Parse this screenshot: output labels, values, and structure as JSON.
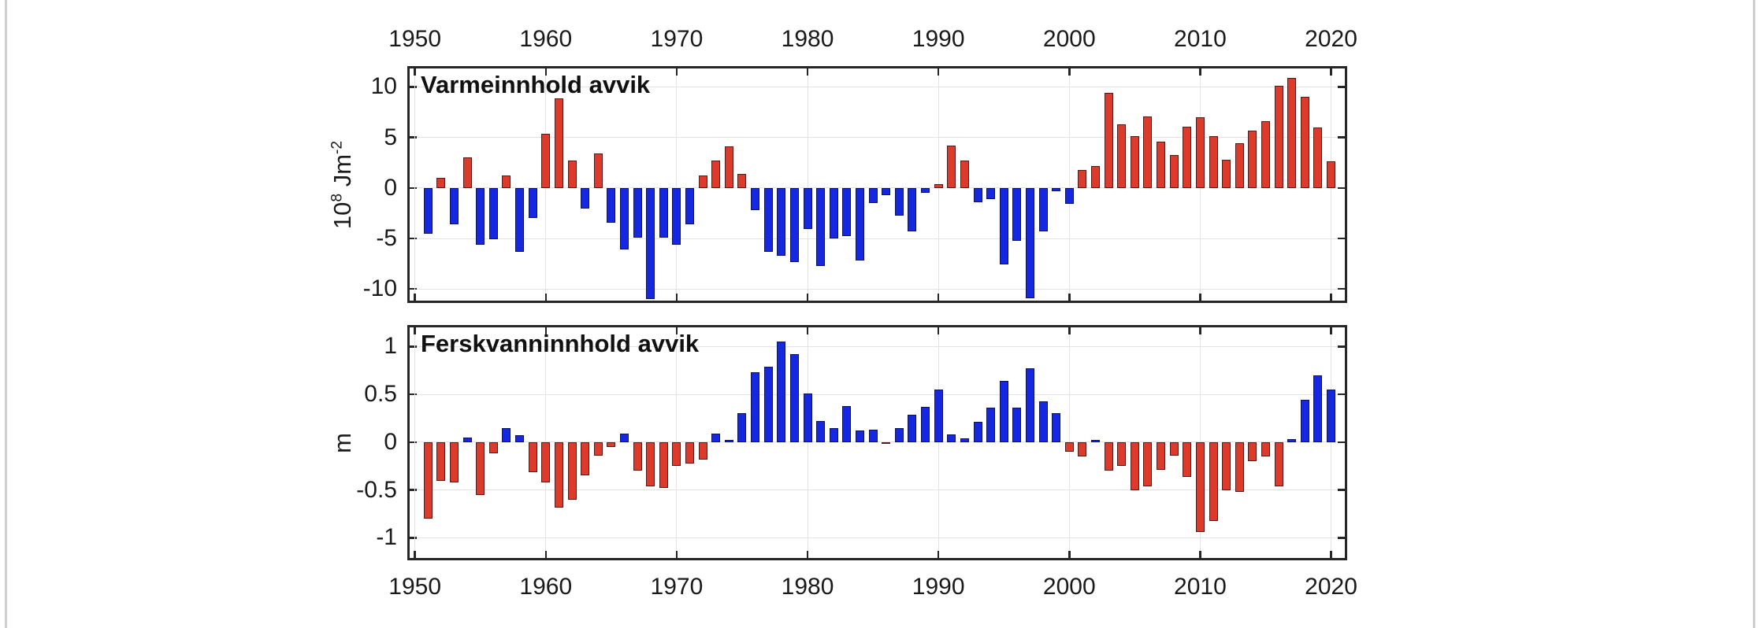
{
  "page": {
    "background": "#ffffff",
    "edge_strip_color": "#cfcfcf"
  },
  "chart_data": [
    {
      "type": "bar",
      "title": "Varmeinnhold avvik",
      "ylabel_parts": {
        "base": "10",
        "sup": "8",
        "mid": " Jm",
        "sup2": "-2"
      },
      "ylabel_text": "10^8 Jm^-2",
      "xlabel_side": "top",
      "positive_color": "#dc3b2b",
      "negative_color": "#1527e0",
      "grid": true,
      "xticks": [
        1950,
        1960,
        1970,
        1980,
        1990,
        2000,
        2010,
        2020
      ],
      "xtick_labels": [
        "1950",
        "1960",
        "1970",
        "1980",
        "1990",
        "2000",
        "2010",
        "2020"
      ],
      "yticks": [
        10,
        5,
        0,
        -5,
        -10
      ],
      "ytick_labels": [
        "10",
        "5",
        "0",
        "-5",
        "-10"
      ],
      "xlim": [
        1949.6,
        2021.05
      ],
      "ylim": [
        -11.15,
        11.83
      ],
      "years": [
        1951,
        1952,
        1953,
        1954,
        1955,
        1956,
        1957,
        1958,
        1959,
        1960,
        1961,
        1962,
        1963,
        1964,
        1965,
        1966,
        1967,
        1968,
        1969,
        1970,
        1971,
        1972,
        1973,
        1974,
        1975,
        1976,
        1977,
        1978,
        1979,
        1980,
        1981,
        1982,
        1983,
        1984,
        1985,
        1986,
        1987,
        1988,
        1989,
        1990,
        1991,
        1992,
        1993,
        1994,
        1995,
        1996,
        1997,
        1998,
        1999,
        2000,
        2001,
        2002,
        2003,
        2004,
        2005,
        2006,
        2007,
        2008,
        2009,
        2010,
        2011,
        2012,
        2013,
        2014,
        2015,
        2016,
        2017,
        2018,
        2019,
        2020
      ],
      "values": [
        -4.5,
        1.0,
        -3.6,
        3.0,
        -5.6,
        -5.1,
        1.2,
        -6.3,
        -3.0,
        5.4,
        8.9,
        2.7,
        -2.0,
        3.4,
        -3.4,
        -6.1,
        -4.9,
        -11.0,
        -4.9,
        -5.6,
        -3.6,
        1.2,
        2.7,
        4.1,
        1.4,
        -2.2,
        -6.3,
        -6.7,
        -7.3,
        -4.1,
        -7.7,
        -5.0,
        -4.8,
        -7.2,
        -1.5,
        -0.7,
        -2.7,
        -4.3,
        -0.5,
        0.4,
        4.2,
        2.7,
        -1.4,
        -1.1,
        -7.6,
        -5.2,
        -10.9,
        -4.3,
        -0.3,
        -1.6,
        1.8,
        2.2,
        9.4,
        6.3,
        5.1,
        7.1,
        4.6,
        3.3,
        6.1,
        7.0,
        5.1,
        2.8,
        4.4,
        5.7,
        6.6,
        10.1,
        10.9,
        9.0,
        6.0,
        2.6
      ]
    },
    {
      "type": "bar",
      "title": "Ferskvanninnhold avvik",
      "ylabel": "m",
      "xlabel_side": "bottom",
      "positive_color": "#1527e0",
      "negative_color": "#dc3b2b",
      "grid": true,
      "xticks": [
        1950,
        1960,
        1970,
        1980,
        1990,
        2000,
        2010,
        2020
      ],
      "xtick_labels": [
        "1950",
        "1960",
        "1970",
        "1980",
        "1990",
        "2000",
        "2010",
        "2020"
      ],
      "yticks": [
        1,
        0.5,
        0,
        -0.5,
        -1
      ],
      "ytick_labels": [
        "1",
        "0.5",
        "0",
        "-0.5",
        "-1"
      ],
      "xlim": [
        1949.6,
        2021.05
      ],
      "ylim": [
        -1.21,
        1.2
      ],
      "years": [
        1951,
        1952,
        1953,
        1954,
        1955,
        1956,
        1957,
        1958,
        1959,
        1960,
        1961,
        1962,
        1963,
        1964,
        1965,
        1966,
        1967,
        1968,
        1969,
        1970,
        1971,
        1972,
        1973,
        1974,
        1975,
        1976,
        1977,
        1978,
        1979,
        1980,
        1981,
        1982,
        1983,
        1984,
        1985,
        1986,
        1987,
        1988,
        1989,
        1990,
        1991,
        1992,
        1993,
        1994,
        1995,
        1996,
        1997,
        1998,
        1999,
        2000,
        2001,
        2002,
        2003,
        2004,
        2005,
        2006,
        2007,
        2008,
        2009,
        2010,
        2011,
        2012,
        2013,
        2014,
        2015,
        2016,
        2017,
        2018,
        2019,
        2020
      ],
      "values": [
        -0.8,
        -0.4,
        -0.42,
        0.05,
        -0.55,
        -0.12,
        0.15,
        0.07,
        -0.31,
        -0.42,
        -0.68,
        -0.6,
        -0.35,
        -0.14,
        -0.05,
        0.09,
        -0.3,
        -0.46,
        -0.48,
        -0.25,
        -0.22,
        -0.18,
        0.09,
        0.02,
        0.3,
        0.73,
        0.79,
        1.05,
        0.92,
        0.51,
        0.22,
        0.15,
        0.38,
        0.12,
        0.13,
        -0.02,
        0.15,
        0.29,
        0.37,
        0.55,
        0.08,
        0.04,
        0.21,
        0.36,
        0.64,
        0.36,
        0.77,
        0.43,
        0.3,
        -0.1,
        -0.15,
        0.02,
        -0.3,
        -0.25,
        -0.5,
        -0.46,
        -0.29,
        -0.14,
        -0.36,
        -0.94,
        -0.82,
        -0.5,
        -0.52,
        -0.2,
        -0.15,
        -0.46,
        0.03,
        0.44,
        0.7,
        0.55
      ]
    }
  ]
}
